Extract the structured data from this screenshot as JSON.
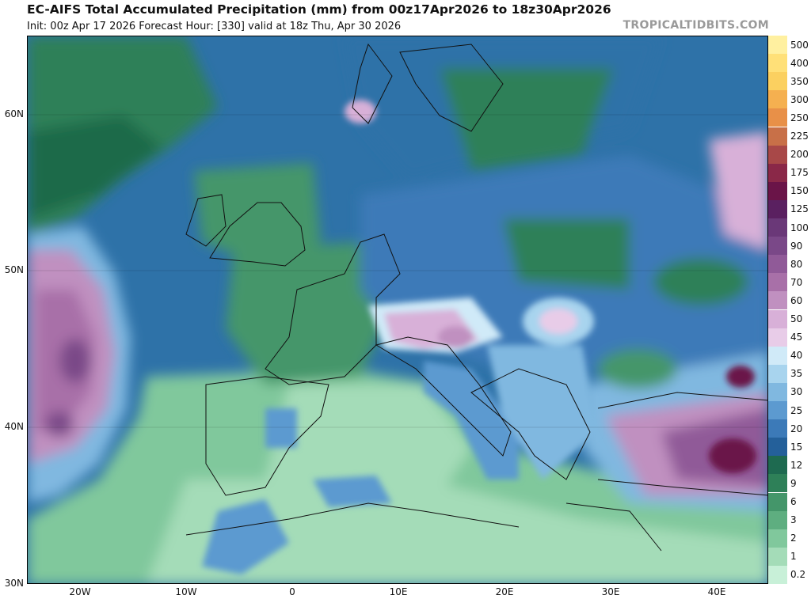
{
  "header": {
    "title": "EC-AIFS Total Accumulated Precipitation (mm) from 00z17Apr2026 to 18z30Apr2026",
    "subtitle": "Init: 00z Apr 17 2026   Forecast Hour: [330]   valid at 18z Thu, Apr 30 2026",
    "brand": "TROPICALTIDBITS.COM"
  },
  "axes": {
    "lat_labels": [
      "60N",
      "50N",
      "40N",
      "30N"
    ],
    "lon_labels": [
      "20W",
      "10W",
      "0",
      "10E",
      "20E",
      "30E",
      "40E"
    ]
  },
  "colorbar": {
    "unit": "mm",
    "levels": [
      {
        "label": "500",
        "color": "#fff0a0"
      },
      {
        "label": "400",
        "color": "#ffe078"
      },
      {
        "label": "350",
        "color": "#fbd060"
      },
      {
        "label": "300",
        "color": "#f5b050"
      },
      {
        "label": "250",
        "color": "#e89048"
      },
      {
        "label": "225",
        "color": "#c87048"
      },
      {
        "label": "200",
        "color": "#a84848"
      },
      {
        "label": "175",
        "color": "#8a2848"
      },
      {
        "label": "150",
        "color": "#6a1448"
      },
      {
        "label": "125",
        "color": "#5a2060"
      },
      {
        "label": "100",
        "color": "#6a3878"
      },
      {
        "label": "90",
        "color": "#7a4888"
      },
      {
        "label": "80",
        "color": "#905a98"
      },
      {
        "label": "70",
        "color": "#a870a8"
      },
      {
        "label": "60",
        "color": "#c090c0"
      },
      {
        "label": "50",
        "color": "#d8b0d8"
      },
      {
        "label": "45",
        "color": "#e8cce8"
      },
      {
        "label": "40",
        "color": "#d0eaf8"
      },
      {
        "label": "35",
        "color": "#a8d4ee"
      },
      {
        "label": "30",
        "color": "#80b8e0"
      },
      {
        "label": "25",
        "color": "#5c9ad0"
      },
      {
        "label": "20",
        "color": "#3c7ab8"
      },
      {
        "label": "15",
        "color": "#24609a"
      },
      {
        "label": "12",
        "color": "#1e6a50"
      },
      {
        "label": "9",
        "color": "#2e8058"
      },
      {
        "label": "6",
        "color": "#44966a"
      },
      {
        "label": "3",
        "color": "#5eae80"
      },
      {
        "label": "2",
        "color": "#80c89c"
      },
      {
        "label": "1",
        "color": "#a4dcb8"
      },
      {
        "label": "0.2",
        "color": "#c8f0d8"
      }
    ]
  },
  "regions": [
    {
      "name": "atlantic-max",
      "value_mm": 90,
      "color": "#7a4888"
    },
    {
      "name": "turkey-caucasus-max",
      "value_mm": 150,
      "color": "#6a1448"
    },
    {
      "name": "alps-max",
      "value_mm": 60,
      "color": "#c090c0"
    }
  ]
}
